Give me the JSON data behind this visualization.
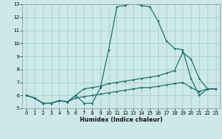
{
  "xlabel": "Humidex (Indice chaleur)",
  "bg_color": "#cce8e8",
  "grid_color": "#aacccc",
  "line_color": "#1a6b6b",
  "line1_x": [
    0,
    1,
    2,
    3,
    4,
    5,
    6,
    7,
    8,
    9,
    10,
    11,
    12,
    13,
    14,
    15,
    16,
    17,
    18,
    19,
    20,
    21,
    22,
    23
  ],
  "line1_y": [
    6.0,
    5.8,
    5.4,
    5.4,
    5.6,
    5.5,
    6.0,
    5.4,
    5.4,
    6.6,
    9.5,
    12.8,
    12.9,
    13.1,
    12.9,
    12.8,
    11.7,
    10.2,
    9.6,
    9.5,
    7.3,
    6.0,
    6.5,
    6.5
  ],
  "line2_x": [
    0,
    1,
    2,
    3,
    4,
    5,
    6,
    7,
    8,
    9,
    10,
    11,
    12,
    13,
    14,
    15,
    16,
    17,
    18,
    19,
    20,
    21,
    22,
    23
  ],
  "line2_y": [
    6.0,
    5.8,
    5.4,
    5.4,
    5.6,
    5.5,
    6.0,
    6.5,
    6.6,
    6.7,
    6.9,
    7.0,
    7.1,
    7.2,
    7.3,
    7.4,
    7.5,
    7.7,
    7.9,
    9.3,
    8.8,
    7.3,
    6.5,
    6.5
  ],
  "line3_x": [
    0,
    1,
    2,
    3,
    4,
    5,
    6,
    7,
    8,
    9,
    10,
    11,
    12,
    13,
    14,
    15,
    16,
    17,
    18,
    19,
    20,
    21,
    22,
    23
  ],
  "line3_y": [
    6.0,
    5.8,
    5.4,
    5.4,
    5.6,
    5.5,
    5.8,
    5.9,
    6.0,
    6.1,
    6.2,
    6.3,
    6.4,
    6.5,
    6.6,
    6.6,
    6.7,
    6.8,
    6.9,
    7.0,
    6.6,
    6.3,
    6.5,
    6.5
  ],
  "xlim": [
    -0.5,
    23.5
  ],
  "ylim": [
    5,
    13
  ],
  "yticks": [
    5,
    6,
    7,
    8,
    9,
    10,
    11,
    12,
    13
  ],
  "xticks": [
    0,
    1,
    2,
    3,
    4,
    5,
    6,
    7,
    8,
    9,
    10,
    11,
    12,
    13,
    14,
    15,
    16,
    17,
    18,
    19,
    20,
    21,
    22,
    23
  ]
}
